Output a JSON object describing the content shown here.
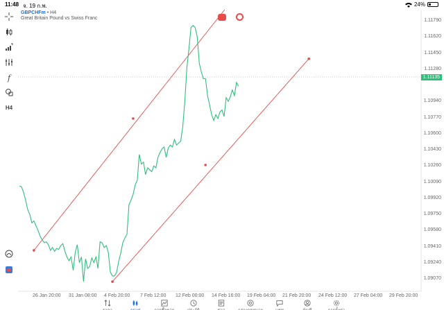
{
  "status": {
    "time": "11:48",
    "date": "จ. 19 ก.พ.",
    "battery": "24%"
  },
  "symbol": {
    "name": "GBPCHFm",
    "timeframe": "H4",
    "description": "Great Britain Pound vs Swiss Franc"
  },
  "toolbar": {
    "timeframe_label": "H4",
    "function_label": "f"
  },
  "chart_data": {
    "type": "line",
    "price_axis": [
      "1.11790",
      "1.11620",
      "1.11450",
      "1.11280",
      "1.10940",
      "1.10770",
      "1.10600",
      "1.10430",
      "1.10260",
      "1.10090",
      "1.09920",
      "1.09750",
      "1.09580",
      "1.09410",
      "1.09240",
      "1.09070"
    ],
    "current_price": "1.11135",
    "time_axis": [
      "26 Jan 20:00",
      "31 Jan 08:00",
      "4 Feb 20:00",
      "7 Feb 12:00",
      "12 Feb 00:00",
      "14 Feb 16:00",
      "19 Feb 04:00",
      "21 Feb 20:00",
      "24 Feb 12:00",
      "27 Feb 04:00",
      "29 Feb 20:00"
    ],
    "series": [
      {
        "values": [
          1.1005,
          1.1004,
          1.0998,
          1.099,
          1.098,
          1.0975,
          1.0966,
          1.0968,
          1.0963,
          1.0958,
          1.0952,
          1.0948,
          1.0945,
          1.0946,
          1.0943,
          1.0937,
          1.094,
          1.0936,
          1.0939,
          1.0938,
          1.0942,
          1.0944,
          1.0936,
          1.093,
          1.0926,
          1.093,
          1.0916,
          1.0935,
          1.0943,
          1.0924,
          1.093,
          1.0904,
          1.0928,
          1.0918,
          1.092,
          1.0929,
          1.0924,
          1.093,
          1.0918,
          1.0946,
          1.0945,
          1.094,
          1.0942,
          1.0935,
          1.0914,
          1.091,
          1.091,
          1.0914,
          1.0925,
          1.0934,
          1.0945,
          1.095,
          1.0954,
          1.0985,
          1.099,
          1.0996,
          1.1006,
          1.1011,
          1.1038,
          1.1028,
          1.103,
          1.1017,
          1.1024,
          1.1022,
          1.102,
          1.1026,
          1.1024,
          1.1035,
          1.104,
          1.1044,
          1.1046,
          1.1035,
          1.1045,
          1.1048,
          1.1046,
          1.1054,
          1.1048,
          1.105,
          1.1052,
          1.1067,
          1.1094,
          1.113,
          1.115,
          1.1172,
          1.1174,
          1.1172,
          1.1162,
          1.1134,
          1.1125,
          1.1118,
          1.1118,
          1.11,
          1.109,
          1.108,
          1.1074,
          1.108,
          1.1076,
          1.1083,
          1.1085,
          1.1078,
          1.1098,
          1.1094,
          1.1099,
          1.1106,
          1.11,
          1.1114,
          1.111
        ]
      }
    ],
    "channel_lines": [
      {
        "start": {
          "time_index": 7,
          "price": 1.0937
        },
        "mid": {
          "time_index": 55,
          "price": 1.1076
        },
        "end": {
          "time_index": 107,
          "price": 1.1212
        }
      },
      {
        "start": {
          "time_index": 45,
          "price": 1.0904
        },
        "mid": {
          "time_index": 90,
          "price": 1.1027
        },
        "end": {
          "time_index": 140,
          "price": 1.1139
        }
      }
    ]
  },
  "nav": {
    "items": [
      {
        "label": "ราคา",
        "icon": "arrows-updown-icon"
      },
      {
        "label": "กราฟ",
        "icon": "candles-icon"
      },
      {
        "label": "การซื้อขาย",
        "icon": "trend-chart-icon"
      },
      {
        "label": "ประวัติ",
        "icon": "history-icon"
      },
      {
        "label": "ข่าว",
        "icon": "news-icon"
      },
      {
        "label": "กล่องจดหมาย",
        "icon": "at-icon"
      },
      {
        "label": "แชท",
        "icon": "chat-icon"
      },
      {
        "label": "บัญชี",
        "icon": "account-icon"
      },
      {
        "label": "การตั้งค่า",
        "icon": "settings-icon"
      }
    ],
    "active_index": 1
  },
  "colors": {
    "price_line": "#2ebf7b",
    "channel": "#e84b4b",
    "accent": "#1e6fd9"
  }
}
